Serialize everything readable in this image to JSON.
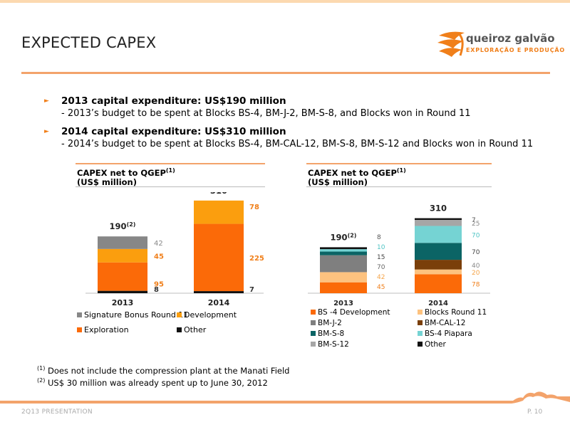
{
  "page": {
    "title": "EXPECTED CAPEX",
    "footer_left": "2Q13 PRESENTATION",
    "footer_right": "P. 10",
    "accent_color": "#f07f1a"
  },
  "logo": {
    "name": "queiroz galvão",
    "subtitle": "EXPLORAÇÃO E PRODUÇÃO"
  },
  "bullets": [
    {
      "title": "2013 capital expenditure: US$190 million",
      "sub": "- 2013’s budget to be spent at Blocks BS-4, BM-J-2, BM-S-8, and Blocks won in Round 11"
    },
    {
      "title": "2014 capital expenditure: US$310 million",
      "sub": "- 2014’s budget to be spent at Blocks BS-4, BM-CAL-12, BM-S-8, BM-S-12 and Blocks won in Round 11"
    }
  ],
  "chart_heading": {
    "line1": "CAPEX net to QGEP",
    "sup": "(1)",
    "line2": "(US$ million)"
  },
  "footnotes": [
    {
      "mark": "(1)",
      "text": "Does not include the compression plant at the Manati Field"
    },
    {
      "mark": "(2)",
      "text": "US$ 30 million was already spent up to June 30, 2012"
    }
  ],
  "chart_data": [
    {
      "type": "bar",
      "stacked": true,
      "categories": [
        "2013",
        "2014"
      ],
      "totals": [
        "190",
        "310"
      ],
      "total_marks": [
        "(2)",
        ""
      ],
      "series": [
        {
          "name": "Other",
          "values": [
            8,
            7
          ],
          "color": "#111111"
        },
        {
          "name": "Exploration",
          "values": [
            95,
            225
          ],
          "color": "#fb6a08"
        },
        {
          "name": "Development",
          "values": [
            45,
            78
          ],
          "color": "#fb9e0e"
        },
        {
          "name": "Signature Bonus Round 11",
          "values": [
            42,
            0
          ],
          "color": "#878787"
        }
      ],
      "legend_order": [
        "Signature Bonus Round 11",
        "Development",
        "Exploration",
        "Other"
      ]
    },
    {
      "type": "bar",
      "stacked": true,
      "categories": [
        "2013",
        "2014"
      ],
      "totals": [
        "190",
        "310"
      ],
      "total_marks": [
        "(2)",
        ""
      ],
      "series": [
        {
          "name": "BS -4 Development",
          "values": [
            45,
            78
          ],
          "color": "#fb6a08"
        },
        {
          "name": "Blocks Round 11",
          "values": [
            42,
            20
          ],
          "color": "#fdc27f"
        },
        {
          "name": "BM-J-2",
          "values": [
            70,
            0
          ],
          "color": "#7f7f7f"
        },
        {
          "name": "BM-CAL-12",
          "values": [
            0,
            40
          ],
          "color": "#7a3f0a"
        },
        {
          "name": "BM-S-8",
          "values": [
            15,
            70
          ],
          "color": "#0b6465"
        },
        {
          "name": "BS-4 Piapara",
          "values": [
            10,
            70
          ],
          "color": "#75d3d3"
        },
        {
          "name": "BM-S-12",
          "values": [
            0,
            25
          ],
          "color": "#a6a6a6"
        },
        {
          "name": "Other",
          "values": [
            8,
            7
          ],
          "color": "#111111"
        }
      ],
      "legend_order": [
        "BS -4 Development",
        "Blocks Round 11",
        "BM-J-2",
        "BM-CAL-12",
        "BM-S-8",
        "BS-4 Piapara",
        "BM-S-12",
        "Other"
      ]
    }
  ]
}
